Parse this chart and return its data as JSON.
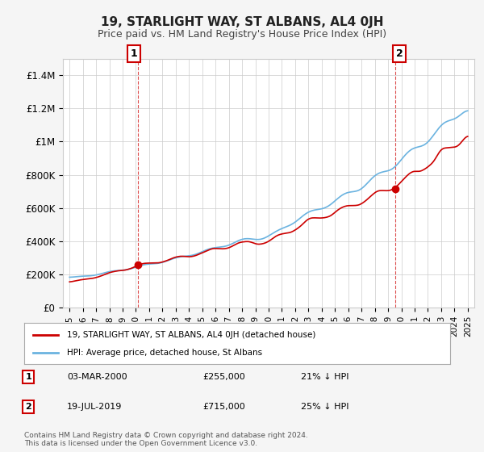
{
  "title": "19, STARLIGHT WAY, ST ALBANS, AL4 0JH",
  "subtitle": "Price paid vs. HM Land Registry's House Price Index (HPI)",
  "ylabel": "",
  "ylim": [
    0,
    1500000
  ],
  "yticks": [
    0,
    200000,
    400000,
    600000,
    800000,
    1000000,
    1200000,
    1400000
  ],
  "ytick_labels": [
    "£0",
    "£200K",
    "£400K",
    "£600K",
    "£800K",
    "£1M",
    "£1.2M",
    "£1.4M"
  ],
  "hpi_color": "#6bb3e0",
  "price_color": "#cc0000",
  "annotation1_label": "1",
  "annotation1_date": "03-MAR-2000",
  "annotation1_price": "£255,000",
  "annotation1_pct": "21% ↓ HPI",
  "annotation2_label": "2",
  "annotation2_date": "19-JUL-2019",
  "annotation2_price": "£715,000",
  "annotation2_pct": "25% ↓ HPI",
  "legend_line1": "19, STARLIGHT WAY, ST ALBANS, AL4 0JH (detached house)",
  "legend_line2": "HPI: Average price, detached house, St Albans",
  "footnote": "Contains HM Land Registry data © Crown copyright and database right 2024.\nThis data is licensed under the Open Government Licence v3.0.",
  "background_color": "#f5f5f5",
  "plot_background": "#ffffff",
  "grid_color": "#cccccc",
  "x_start_year": 1995,
  "x_end_year": 2025
}
